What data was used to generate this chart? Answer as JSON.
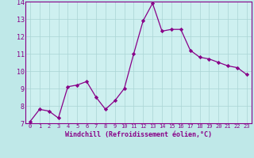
{
  "x": [
    0,
    1,
    2,
    3,
    4,
    5,
    6,
    7,
    8,
    9,
    10,
    11,
    12,
    13,
    14,
    15,
    16,
    17,
    18,
    19,
    20,
    21,
    22,
    23
  ],
  "y": [
    7.1,
    7.8,
    7.7,
    7.3,
    9.1,
    9.2,
    9.4,
    8.5,
    7.8,
    8.3,
    9.0,
    11.0,
    12.9,
    13.9,
    12.3,
    12.4,
    12.4,
    11.2,
    10.8,
    10.7,
    10.5,
    10.3,
    10.2,
    9.8
  ],
  "line_color": "#880088",
  "marker": "D",
  "marker_size": 2.2,
  "linewidth": 0.9,
  "xlabel": "Windchill (Refroidissement éolien,°C)",
  "xlabel_fontsize": 6.0,
  "ylim": [
    7,
    14
  ],
  "xlim": [
    -0.5,
    23.5
  ],
  "yticks": [
    7,
    8,
    9,
    10,
    11,
    12,
    13,
    14
  ],
  "xticks": [
    0,
    1,
    2,
    3,
    4,
    5,
    6,
    7,
    8,
    9,
    10,
    11,
    12,
    13,
    14,
    15,
    16,
    17,
    18,
    19,
    20,
    21,
    22,
    23
  ],
  "xtick_fontsize": 5.0,
  "ytick_fontsize": 6.0,
  "grid_color": "#aad4d4",
  "background_color": "#bfe8e8",
  "plot_bg_color": "#cef0f0"
}
